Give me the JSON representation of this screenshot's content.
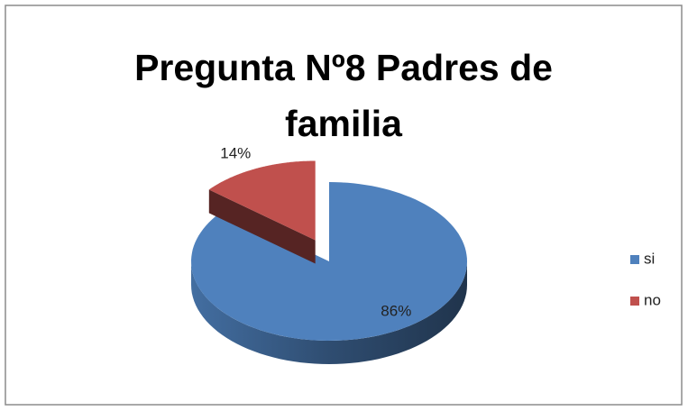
{
  "chart_data": {
    "type": "pie",
    "title": "Pregunta Nº8 Padres de familia",
    "categories": [
      "si",
      "no"
    ],
    "values": [
      86,
      14
    ],
    "value_labels": [
      "86%",
      "14%"
    ],
    "colors": [
      "#4f81bd",
      "#c0504d"
    ],
    "legend": "right",
    "exploded": [
      false,
      true
    ]
  }
}
